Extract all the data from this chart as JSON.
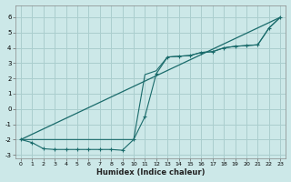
{
  "xlabel": "Humidex (Indice chaleur)",
  "xlim": [
    -0.5,
    23.5
  ],
  "ylim": [
    -3.2,
    6.8
  ],
  "xticks": [
    0,
    1,
    2,
    3,
    4,
    5,
    6,
    7,
    8,
    9,
    10,
    11,
    12,
    13,
    14,
    15,
    16,
    17,
    18,
    19,
    20,
    21,
    22,
    23
  ],
  "yticks": [
    -3,
    -2,
    -1,
    0,
    1,
    2,
    3,
    4,
    5,
    6
  ],
  "background_color": "#cce8e8",
  "grid_color": "#aacece",
  "line_color": "#1a6b6b",
  "line1_x": [
    0,
    1,
    2,
    3,
    4,
    5,
    6,
    7,
    8,
    9,
    10,
    11,
    12,
    13,
    14,
    15,
    16,
    17,
    18,
    19,
    20,
    21,
    22,
    23
  ],
  "line1_y": [
    -2.0,
    -2.2,
    -2.6,
    -2.65,
    -2.65,
    -2.65,
    -2.65,
    -2.65,
    -2.65,
    -2.7,
    -2.0,
    -0.5,
    2.3,
    3.4,
    3.45,
    3.5,
    3.7,
    3.75,
    4.0,
    4.1,
    4.15,
    4.2,
    5.3,
    6.0
  ],
  "line2_x": [
    0,
    10,
    11,
    12,
    13,
    14,
    15,
    16,
    17,
    18,
    19,
    20,
    21,
    22,
    23
  ],
  "line2_y": [
    -2.0,
    -2.0,
    2.25,
    2.5,
    3.4,
    3.45,
    3.5,
    3.7,
    3.75,
    4.0,
    4.1,
    4.15,
    4.2,
    5.3,
    6.0
  ],
  "line3_x": [
    0,
    23
  ],
  "line3_y": [
    -2.0,
    6.0
  ]
}
